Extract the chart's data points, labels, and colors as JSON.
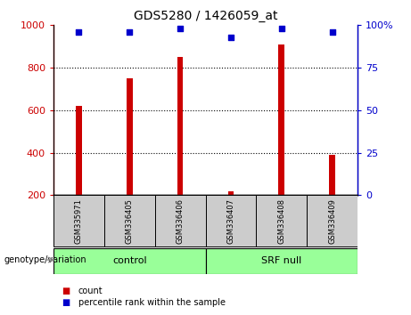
{
  "title": "GDS5280 / 1426059_at",
  "samples": [
    "GSM335971",
    "GSM336405",
    "GSM336406",
    "GSM336407",
    "GSM336408",
    "GSM336409"
  ],
  "bar_values": [
    620,
    750,
    850,
    220,
    910,
    390
  ],
  "percentile_values": [
    96,
    96,
    98,
    93,
    98,
    96
  ],
  "ylim_left": [
    200,
    1000
  ],
  "ylim_right": [
    0,
    100
  ],
  "bar_color": "#cc0000",
  "dot_color": "#0000cc",
  "groups": [
    {
      "label": "control",
      "start": 0,
      "end": 2
    },
    {
      "label": "SRF null",
      "start": 3,
      "end": 5
    }
  ],
  "group_bg_color": "#99ff99",
  "sample_bg_color": "#cccccc",
  "yticks_left": [
    200,
    400,
    600,
    800,
    1000
  ],
  "yticks_right": [
    0,
    25,
    50,
    75,
    100
  ],
  "genotype_label": "genotype/variation"
}
